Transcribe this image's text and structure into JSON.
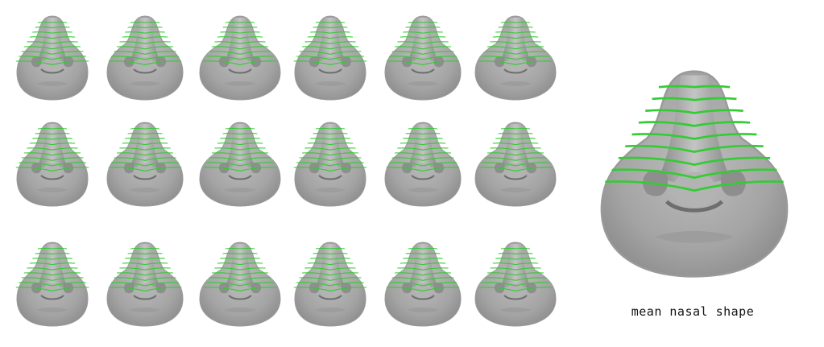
{
  "figure": {
    "grid": {
      "rows": 3,
      "cols": 6
    },
    "caption": "mean nasal shape",
    "colors": {
      "mesh": "#a8a8a8",
      "mesh_dark": "#6e6e6e",
      "mesh_light": "#c9c9c9",
      "landmark_curves": "#33cc33"
    },
    "landmark_curve_count": 9
  }
}
